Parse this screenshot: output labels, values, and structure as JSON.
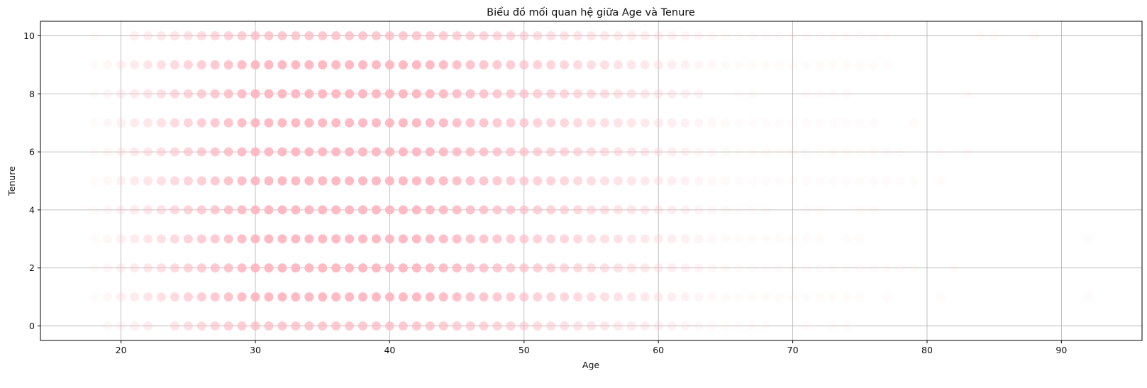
{
  "chart_data": {
    "type": "scatter",
    "title": "Biểu đồ mối quan hệ giữa Age và Tenure",
    "xlabel": "Age",
    "ylabel": "Tenure",
    "xlim": [
      14,
      96
    ],
    "ylim": [
      -0.5,
      10.5
    ],
    "xticks": [
      20,
      30,
      40,
      50,
      60,
      70,
      80,
      90
    ],
    "yticks": [
      0,
      2,
      4,
      6,
      8,
      10
    ],
    "grid": true,
    "marker_color": "#ffb6c1",
    "marker_opacity_per_point": 0.1,
    "density": {
      "rows_ages_listed_per_tenure": {
        "10": [
          18,
          21,
          22,
          23,
          24,
          25,
          26,
          27,
          28,
          29,
          30,
          31,
          32,
          33,
          34,
          35,
          36,
          37,
          38,
          39,
          40,
          41,
          42,
          43,
          44,
          45,
          46,
          47,
          48,
          49,
          50,
          51,
          52,
          53,
          54,
          55,
          56,
          57,
          58,
          59,
          60,
          61,
          62,
          63,
          64,
          65,
          66,
          67,
          68,
          69,
          70,
          71,
          72,
          73,
          74,
          75,
          76,
          77,
          84,
          85,
          88
        ],
        "9": [
          18,
          19,
          20,
          21,
          22,
          23,
          24,
          25,
          26,
          27,
          28,
          29,
          30,
          31,
          32,
          33,
          34,
          35,
          36,
          37,
          38,
          39,
          40,
          41,
          42,
          43,
          44,
          45,
          46,
          47,
          48,
          49,
          50,
          51,
          52,
          53,
          54,
          55,
          56,
          57,
          58,
          59,
          60,
          61,
          62,
          63,
          64,
          65,
          66,
          67,
          68,
          69,
          70,
          71,
          72,
          73,
          74,
          75,
          76,
          77
        ],
        "8": [
          18,
          19,
          20,
          21,
          22,
          23,
          24,
          25,
          26,
          27,
          28,
          29,
          30,
          31,
          32,
          33,
          34,
          35,
          36,
          37,
          38,
          39,
          40,
          41,
          42,
          43,
          44,
          45,
          46,
          47,
          48,
          49,
          50,
          51,
          52,
          53,
          54,
          55,
          56,
          57,
          58,
          59,
          60,
          61,
          62,
          63,
          66,
          67,
          71,
          72,
          73,
          74,
          83
        ],
        "7": [
          18,
          19,
          20,
          21,
          22,
          23,
          24,
          25,
          26,
          27,
          28,
          29,
          30,
          31,
          32,
          33,
          34,
          35,
          36,
          37,
          38,
          39,
          40,
          41,
          42,
          43,
          44,
          45,
          46,
          47,
          48,
          49,
          50,
          51,
          52,
          53,
          54,
          55,
          56,
          57,
          58,
          59,
          60,
          61,
          62,
          63,
          64,
          65,
          66,
          67,
          68,
          69,
          70,
          71,
          72,
          73,
          74,
          75,
          76,
          79
        ],
        "6": [
          18,
          19,
          20,
          21,
          22,
          23,
          24,
          25,
          26,
          27,
          28,
          29,
          30,
          31,
          32,
          33,
          34,
          35,
          36,
          37,
          38,
          39,
          40,
          41,
          42,
          43,
          44,
          45,
          46,
          47,
          48,
          49,
          50,
          51,
          52,
          53,
          54,
          55,
          56,
          57,
          58,
          59,
          60,
          61,
          62,
          63,
          64,
          65,
          66,
          67,
          68,
          69,
          70,
          71,
          72,
          73,
          74,
          75,
          76,
          77,
          78,
          81,
          83
        ],
        "5": [
          18,
          19,
          20,
          21,
          22,
          23,
          24,
          25,
          26,
          27,
          28,
          29,
          30,
          31,
          32,
          33,
          34,
          35,
          36,
          37,
          38,
          39,
          40,
          41,
          42,
          43,
          44,
          45,
          46,
          47,
          48,
          49,
          50,
          51,
          52,
          53,
          54,
          55,
          56,
          57,
          58,
          59,
          60,
          61,
          62,
          63,
          64,
          65,
          66,
          67,
          68,
          69,
          70,
          71,
          72,
          73,
          74,
          75,
          76,
          77,
          78,
          79,
          81
        ],
        "4": [
          18,
          19,
          20,
          21,
          22,
          23,
          24,
          25,
          26,
          27,
          28,
          29,
          30,
          31,
          32,
          33,
          34,
          35,
          36,
          37,
          38,
          39,
          40,
          41,
          42,
          43,
          44,
          45,
          46,
          47,
          48,
          49,
          50,
          51,
          52,
          53,
          54,
          55,
          56,
          57,
          58,
          59,
          60,
          61,
          62,
          63,
          64,
          65,
          66,
          67,
          68,
          71,
          72,
          75,
          76
        ],
        "3": [
          18,
          19,
          20,
          21,
          22,
          23,
          24,
          25,
          26,
          27,
          28,
          29,
          30,
          31,
          32,
          33,
          34,
          35,
          36,
          37,
          38,
          39,
          40,
          41,
          42,
          43,
          44,
          45,
          46,
          47,
          48,
          49,
          50,
          51,
          52,
          53,
          54,
          55,
          56,
          57,
          58,
          59,
          60,
          61,
          62,
          63,
          64,
          65,
          66,
          67,
          68,
          69,
          70,
          71,
          72,
          74,
          75,
          92
        ],
        "2": [
          18,
          19,
          20,
          21,
          22,
          23,
          24,
          25,
          26,
          27,
          28,
          29,
          30,
          31,
          32,
          33,
          34,
          35,
          36,
          37,
          38,
          39,
          40,
          41,
          42,
          43,
          44,
          45,
          46,
          47,
          48,
          49,
          50,
          51,
          52,
          53,
          54,
          55,
          56,
          57,
          58,
          59,
          60,
          61,
          62,
          63,
          64,
          65,
          66,
          67,
          68,
          69,
          70,
          71,
          72,
          73,
          74,
          75,
          76,
          77,
          78,
          79,
          82
        ],
        "1": [
          18,
          19,
          20,
          21,
          22,
          23,
          24,
          25,
          26,
          27,
          28,
          29,
          30,
          31,
          32,
          33,
          34,
          35,
          36,
          37,
          38,
          39,
          40,
          41,
          42,
          43,
          44,
          45,
          46,
          47,
          48,
          49,
          50,
          51,
          52,
          53,
          54,
          55,
          56,
          57,
          58,
          59,
          60,
          61,
          62,
          63,
          64,
          65,
          66,
          67,
          68,
          69,
          70,
          71,
          72,
          73,
          74,
          75,
          77,
          81,
          92
        ],
        "0": [
          19,
          20,
          21,
          22,
          24,
          25,
          26,
          27,
          28,
          29,
          30,
          31,
          32,
          33,
          34,
          35,
          36,
          37,
          38,
          39,
          40,
          41,
          42,
          43,
          44,
          45,
          46,
          47,
          48,
          49,
          50,
          51,
          52,
          53,
          54,
          55,
          56,
          57,
          58,
          59,
          60,
          61,
          62,
          63,
          64,
          65,
          66,
          67,
          68,
          71,
          73,
          74
        ]
      },
      "opacity_profile": {
        "peak_age_range": [
          30,
          42
        ],
        "peak_opacity": 0.95,
        "tail_opacity": 0.06
      }
    }
  }
}
